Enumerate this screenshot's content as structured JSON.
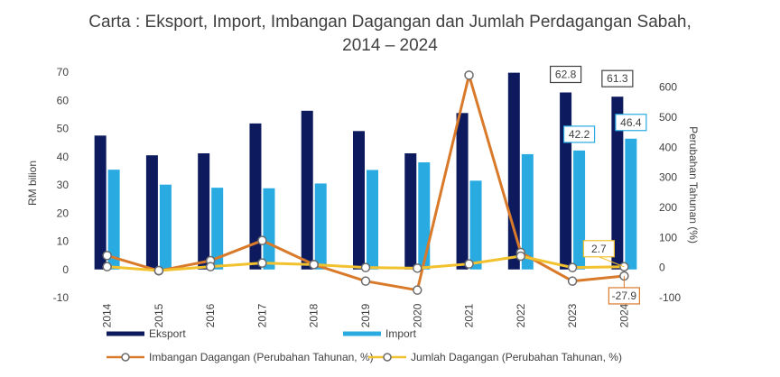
{
  "chart_data": {
    "type": "bar",
    "title_lines": [
      "Carta : Eksport, Import, Imbangan Dagangan dan Jumlah Perdagangan Sabah,",
      "2014 – 2024"
    ],
    "categories": [
      "2014",
      "2015",
      "2016",
      "2017",
      "2018",
      "2019",
      "2020",
      "2021",
      "2022",
      "2023",
      "2024"
    ],
    "ylabel": "RM bilion",
    "y2label": "Perubahan Tahunan (%)",
    "ylim": [
      -10,
      70
    ],
    "y2lim": [
      -100,
      650
    ],
    "yticks": [
      "-10",
      "0",
      "10",
      "20",
      "30",
      "40",
      "50",
      "60",
      "70"
    ],
    "y2ticks": [
      "-100",
      "0",
      "100",
      "200",
      "300",
      "400",
      "500",
      "600"
    ],
    "grid": false,
    "legend_position": "bottom",
    "series": [
      {
        "name": "Eksport",
        "type": "bar",
        "axis": "left",
        "color": "#0d1b5e",
        "values": [
          47.5,
          40.5,
          41.2,
          51.8,
          56.3,
          49.1,
          41.2,
          55.5,
          69.8,
          62.8,
          61.3
        ]
      },
      {
        "name": "Import",
        "type": "bar",
        "axis": "left",
        "color": "#29abe2",
        "values": [
          35.4,
          30.1,
          29.0,
          28.8,
          30.5,
          35.3,
          38.0,
          31.5,
          40.9,
          42.2,
          46.4
        ]
      },
      {
        "name": "Imbangan Dagangan (Perubahan Tahunan, %)",
        "type": "line",
        "axis": "right",
        "color": "#d97a2b",
        "values": [
          40,
          -11,
          23,
          90,
          10,
          -45,
          -75,
          640,
          50,
          -45,
          -27.9
        ]
      },
      {
        "name": "Jumlah Dagangan (Perubahan Tahunan, %)",
        "type": "line",
        "axis": "right",
        "color": "#f2c12e",
        "values": [
          3,
          -10,
          3,
          15,
          10,
          0,
          -2,
          12,
          38,
          0,
          2.7
        ]
      }
    ],
    "data_labels": [
      {
        "series": "Eksport",
        "category": "2023",
        "text": "62.8"
      },
      {
        "series": "Eksport",
        "category": "2024",
        "text": "61.3"
      },
      {
        "series": "Import",
        "category": "2023",
        "text": "42.2"
      },
      {
        "series": "Import",
        "category": "2024",
        "text": "46.4"
      },
      {
        "series": "Jumlah Dagangan (Perubahan Tahunan, %)",
        "category": "2024",
        "text": "2.7"
      },
      {
        "series": "Imbangan Dagangan (Perubahan Tahunan, %)",
        "category": "2024",
        "text": "-27.9"
      }
    ]
  }
}
